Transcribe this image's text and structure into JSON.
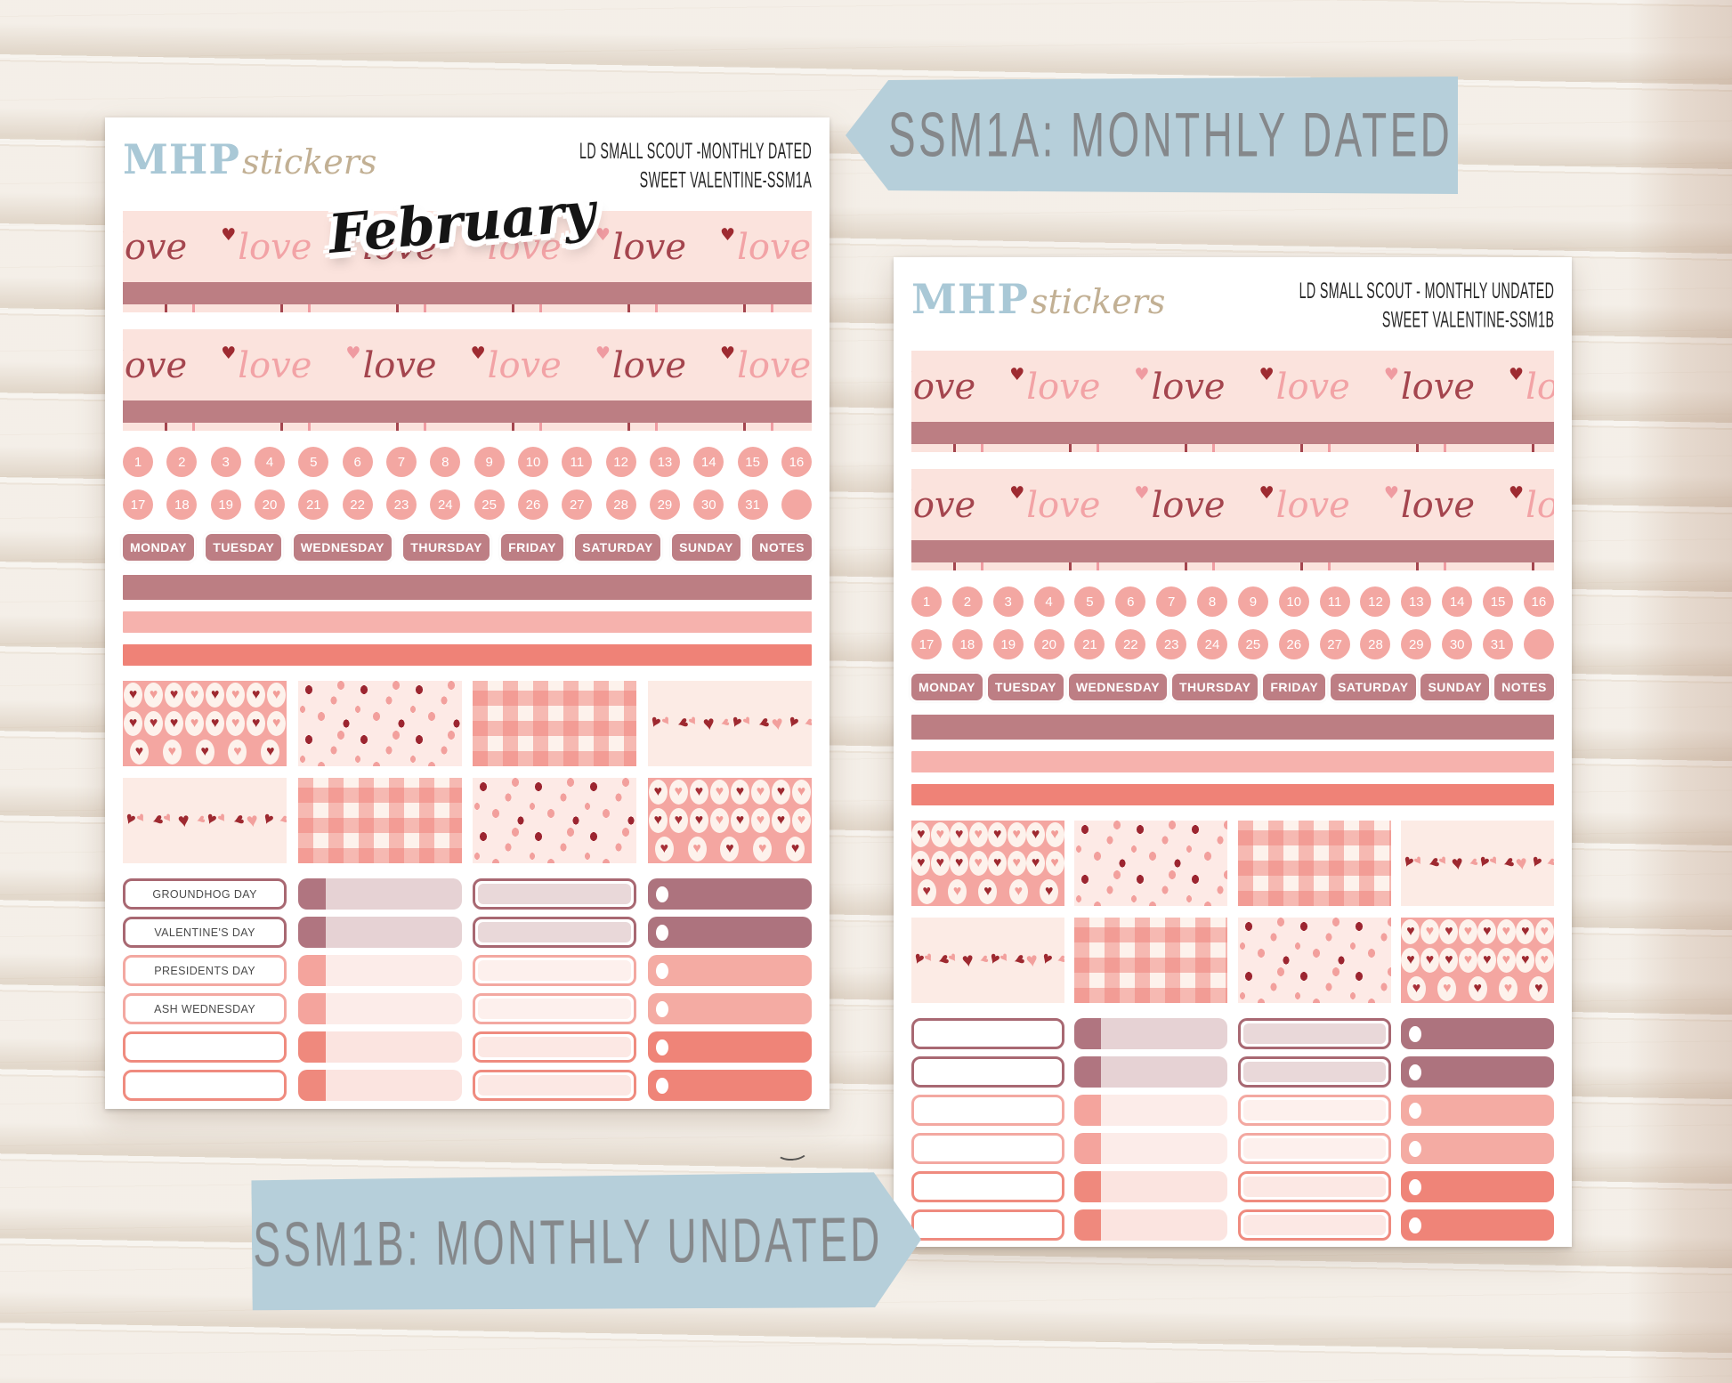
{
  "banners": {
    "top_label": "SSM1A: MONTHLY DATED",
    "bottom_label": "SSM1B: MONTHLY UNDATED",
    "banner_color": "#b6cfda",
    "banner_text_color": "#85888b"
  },
  "brand": {
    "name_bold": "MHP",
    "name_script": "stickers"
  },
  "washi": {
    "word": "love"
  },
  "calendar": {
    "dates_row1": [
      "1",
      "2",
      "3",
      "4",
      "5",
      "6",
      "7",
      "8",
      "9",
      "10",
      "11",
      "12",
      "13",
      "14",
      "15",
      "16"
    ],
    "dates_row2": [
      "17",
      "18",
      "19",
      "20",
      "21",
      "22",
      "23",
      "24",
      "25",
      "26",
      "27",
      "28",
      "29",
      "30",
      "31",
      ""
    ],
    "day_labels": [
      "MONDAY",
      "TUESDAY",
      "WEDNESDAY",
      "THURSDAY",
      "FRIDAY",
      "SATURDAY",
      "SUNDAY",
      "NOTES"
    ]
  },
  "sheet_a": {
    "title_line1": "LD SMALL SCOUT -MONTHLY DATED",
    "title_line2": "SWEET VALENTINE-SSM1A",
    "month_label": "February",
    "events": [
      "GROUNDHOG DAY",
      "VALENTINE'S DAY",
      "PRESIDENTS DAY",
      "ASH WEDNESDAY",
      "",
      ""
    ]
  },
  "sheet_b": {
    "title_line1": "LD SMALL SCOUT - MONTHLY UNDATED",
    "title_line2": "SWEET VALENTINE-SSM1B",
    "events": [
      "",
      "",
      "",
      "",
      "",
      ""
    ]
  },
  "colors": {
    "washi_background": "#fbe3dd",
    "script_dark_red": "#a4454e",
    "script_pink": "#f2a3a6",
    "heart_dark": "#9e2b31",
    "heart_pink": "#ef9ba1",
    "mauve_bar": "#bc7e83",
    "light_pink_bar": "#f6b2ad",
    "salmon_bar": "#ef8277",
    "date_circle": "#f3a7a2",
    "day_label_background": "#bd7e84",
    "pattern_cream": "#fdeae6",
    "pattern_pink": "#f4a6a1",
    "logo_blue": "#a9c8d6",
    "logo_tan": "#c2b094"
  }
}
